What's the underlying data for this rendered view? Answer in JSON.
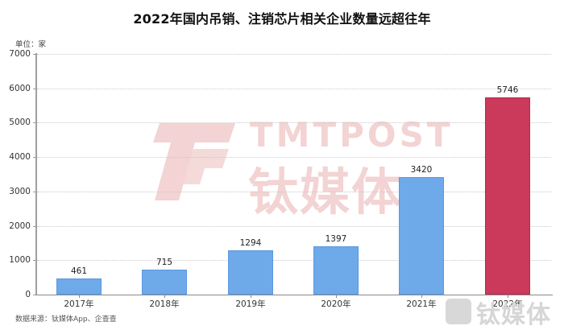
{
  "title": "2022年国内吊销、注销芯片相关企业数量远超往年",
  "unit_label": "单位：家",
  "source_label": "数据来源：钛媒体App、企查查",
  "watermark": {
    "text_en": "TMTPOST",
    "text_cn": "钛媒体",
    "corner_text": "钛媒体"
  },
  "colors": {
    "bar_default": "#6ea9ea",
    "bar_highlight": "#cb3a5b",
    "watermark": "#f3d3d3"
  },
  "y_ticks": [
    "0",
    "1000",
    "2000",
    "3000",
    "4000",
    "5000",
    "6000",
    "7000"
  ],
  "bars": [
    {
      "category": "2017年",
      "value": "461",
      "highlight": false
    },
    {
      "category": "2018年",
      "value": "715",
      "highlight": false
    },
    {
      "category": "2019年",
      "value": "1294",
      "highlight": false
    },
    {
      "category": "2020年",
      "value": "1397",
      "highlight": false
    },
    {
      "category": "2021年",
      "value": "3420",
      "highlight": false
    },
    {
      "category": "2022年",
      "value": "5746",
      "highlight": true
    }
  ],
  "chart_data": {
    "type": "bar",
    "title": "2022年国内吊销、注销芯片相关企业数量远超往年",
    "categories": [
      "2017年",
      "2018年",
      "2019年",
      "2020年",
      "2021年",
      "2022年"
    ],
    "values": [
      461,
      715,
      1294,
      1397,
      3420,
      5746
    ],
    "xlabel": "",
    "ylabel": "单位：家",
    "ylim": [
      0,
      7000
    ],
    "yticks": [
      0,
      1000,
      2000,
      3000,
      4000,
      5000,
      6000,
      7000
    ],
    "grid": true,
    "legend": null,
    "highlight": {
      "category": "2022年",
      "color": "#cb3a5b"
    },
    "default_color": "#6ea9ea",
    "data_labels": true,
    "source": "数据来源：钛媒体App、企查查"
  }
}
